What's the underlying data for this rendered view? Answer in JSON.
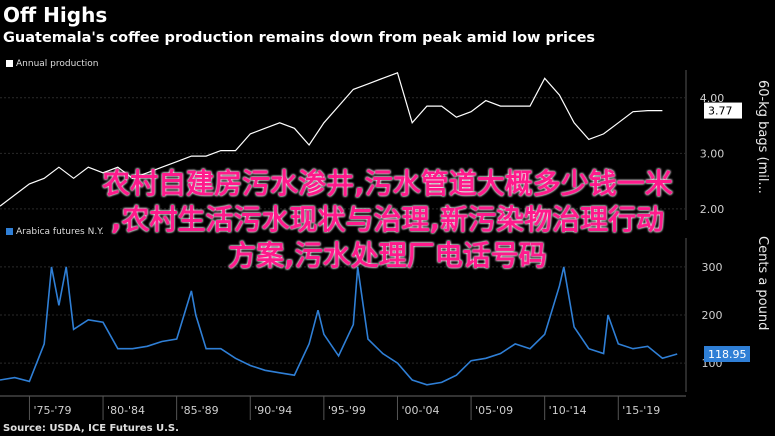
{
  "header": {
    "title": "Off Highs",
    "subtitle": "Guatemala's coffee production remains down from peak amid low prices"
  },
  "overlay_text": {
    "line1": "农村自建房污水渗井,污水管道大概多少钱一米",
    "line2": ",农村生活污水现状与治理,新污染物治理行动",
    "line3": "方案,污水处理厂电话号码"
  },
  "source": "Source: USDA, ICE Futures U.S.",
  "chart_data": [
    {
      "type": "line",
      "legend": "Annual production",
      "ylabel": "60-kg bags (mil...",
      "color": "#ffffff",
      "last_value_label": "3.77",
      "yticks": [
        "4.00",
        "3.00",
        "2.00"
      ],
      "ylim": [
        1.8,
        4.5
      ],
      "x": [
        1973,
        1974,
        1975,
        1976,
        1977,
        1978,
        1979,
        1980,
        1981,
        1982,
        1983,
        1984,
        1985,
        1986,
        1987,
        1988,
        1989,
        1990,
        1991,
        1992,
        1993,
        1994,
        1995,
        1996,
        1997,
        1998,
        1999,
        2000,
        2001,
        2002,
        2003,
        2004,
        2005,
        2006,
        2007,
        2008,
        2009,
        2010,
        2011,
        2012,
        2013,
        2014,
        2015,
        2016,
        2017,
        2018
      ],
      "values": [
        2.05,
        2.25,
        2.45,
        2.55,
        2.75,
        2.55,
        2.75,
        2.65,
        2.75,
        2.55,
        2.65,
        2.75,
        2.85,
        2.95,
        2.95,
        3.05,
        3.05,
        3.35,
        3.45,
        3.55,
        3.45,
        3.15,
        3.55,
        3.85,
        4.15,
        4.25,
        4.35,
        4.45,
        3.55,
        3.85,
        3.85,
        3.65,
        3.75,
        3.95,
        3.85,
        3.85,
        3.85,
        4.35,
        4.05,
        3.55,
        3.25,
        3.35,
        3.55,
        3.75,
        3.77,
        3.77
      ]
    },
    {
      "type": "line",
      "legend": "Arabica futures N.Y.",
      "ylabel": "Cents a pound",
      "color": "#2f7fd6",
      "last_value_label": "118.95",
      "yticks": [
        "300",
        "200",
        "100"
      ],
      "ylim": [
        40,
        360
      ],
      "xticks": [
        "'75-'79",
        "'80-'84",
        "'85-'89",
        "'90-'94",
        "'95-'99",
        "'00-'04",
        "'05-'09",
        "'10-'14",
        "'15-'19"
      ],
      "x": [
        1973,
        1974,
        1975,
        1976,
        1976.5,
        1977,
        1977.5,
        1978,
        1979,
        1980,
        1981,
        1982,
        1983,
        1984,
        1985,
        1986,
        1986.3,
        1987,
        1988,
        1989,
        1990,
        1991,
        1992,
        1993,
        1994,
        1994.6,
        1995,
        1996,
        1997,
        1997.3,
        1998,
        1999,
        2000,
        2001,
        2002,
        2003,
        2004,
        2005,
        2006,
        2007,
        2008,
        2009,
        2010,
        2011,
        2011.3,
        2012,
        2013,
        2014,
        2014.3,
        2015,
        2016,
        2017,
        2018,
        2019
      ],
      "values": [
        65,
        70,
        62,
        140,
        300,
        220,
        300,
        170,
        190,
        185,
        130,
        130,
        135,
        145,
        150,
        250,
        200,
        130,
        130,
        110,
        95,
        85,
        80,
        75,
        140,
        210,
        160,
        115,
        180,
        300,
        150,
        120,
        100,
        65,
        55,
        60,
        75,
        105,
        110,
        120,
        140,
        130,
        160,
        260,
        300,
        175,
        130,
        120,
        200,
        140,
        130,
        135,
        110,
        118.95
      ]
    }
  ]
}
